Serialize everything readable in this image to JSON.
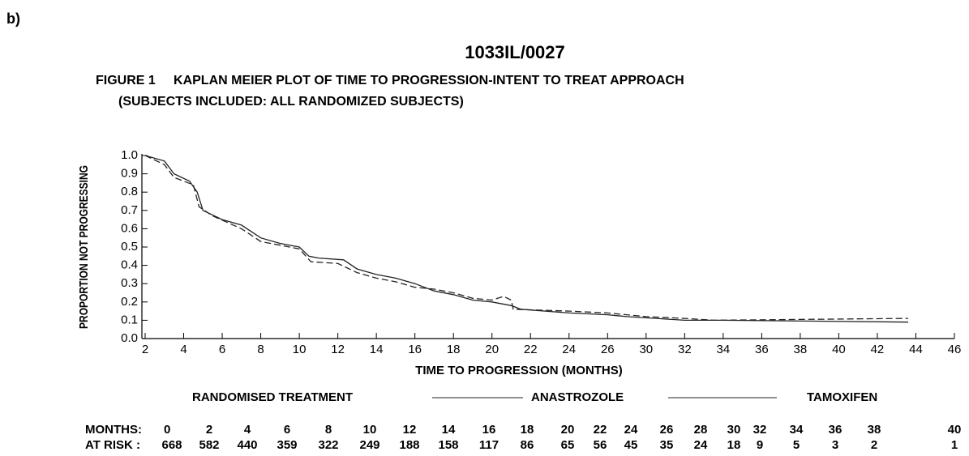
{
  "label": "b)",
  "header": {
    "code": "1033IL/0027",
    "figure": "FIGURE 1     KAPLAN MEIER PLOT OF TIME TO PROGRESSION-INTENT TO TREAT APPROACH",
    "subtitle": "(SUBJECTS INCLUDED: ALL RANDOMIZED SUBJECTS)"
  },
  "chart_data": {
    "type": "line",
    "x_label": "TIME TO PROGRESSION (MONTHS)",
    "y_label": "PROPORTION NOT PROGRESSING",
    "xlim": [
      2,
      44
    ],
    "xticks": [
      2,
      4,
      6,
      8,
      10,
      12,
      14,
      16,
      18,
      20,
      22,
      24,
      26,
      {
        "value": 28,
        "label": "30"
      },
      {
        "value": 30,
        "label": "32"
      },
      {
        "value": 32,
        "label": "34"
      },
      {
        "value": 34,
        "label": "36"
      },
      {
        "value": 36,
        "label": "38"
      },
      {
        "value": 38,
        "label": "40"
      },
      {
        "value": 40,
        "label": "42"
      },
      {
        "value": 42,
        "label": "44"
      },
      {
        "value": 44,
        "label": "46"
      }
    ],
    "ylim": [
      0,
      1
    ],
    "yticks": [
      {
        "value": 0,
        "label": "0.0"
      },
      0.1,
      0.2,
      0.3,
      0.4,
      0.5,
      0.6,
      0.7,
      0.8,
      0.9,
      {
        "value": 1,
        "label": "1.0"
      }
    ],
    "legend_title": "RANDOMISED TREATMENT",
    "series": [
      {
        "name": "ANASTROZOLE",
        "color": "#222222",
        "dash": "none",
        "x": [
          2,
          3,
          3.5,
          4.3,
          4.7,
          5,
          6,
          7,
          8,
          9,
          10,
          10.5,
          11,
          12.3,
          13,
          14,
          15,
          16,
          17,
          18,
          19,
          20,
          21,
          21.5,
          24,
          26,
          27,
          30,
          32,
          41.6
        ],
        "values": [
          1.0,
          0.97,
          0.9,
          0.86,
          0.8,
          0.7,
          0.65,
          0.62,
          0.55,
          0.52,
          0.5,
          0.45,
          0.44,
          0.43,
          0.38,
          0.35,
          0.33,
          0.3,
          0.26,
          0.24,
          0.21,
          0.2,
          0.18,
          0.16,
          0.14,
          0.13,
          0.12,
          0.1,
          0.1,
          0.09
        ]
      },
      {
        "name": "TAMOXIFEN",
        "color": "#222222",
        "dash": "8 4",
        "x": [
          2,
          3,
          3.5,
          4.5,
          4.8,
          5.5,
          7,
          8,
          9,
          10,
          10.6,
          12,
          13,
          14,
          15,
          16,
          17,
          18,
          19,
          20,
          20.6,
          21,
          21.1,
          24,
          26,
          28,
          30,
          31.5,
          41.6
        ],
        "values": [
          1.0,
          0.95,
          0.88,
          0.84,
          0.72,
          0.67,
          0.6,
          0.53,
          0.51,
          0.49,
          0.42,
          0.41,
          0.36,
          0.33,
          0.31,
          0.28,
          0.27,
          0.25,
          0.22,
          0.21,
          0.23,
          0.21,
          0.16,
          0.15,
          0.14,
          0.12,
          0.11,
          0.1,
          0.11
        ]
      }
    ],
    "at_risk": {
      "months_label": "MONTHS:",
      "at_risk_label": "AT RISK :",
      "months": [
        0,
        2,
        4,
        6,
        8,
        10,
        12,
        14,
        16,
        18,
        20,
        22,
        24,
        26,
        28,
        30,
        32,
        34,
        36,
        38,
        40
      ],
      "counts": [
        668,
        582,
        440,
        359,
        322,
        249,
        188,
        158,
        117,
        86,
        65,
        56,
        45,
        35,
        24,
        18,
        9,
        5,
        3,
        2,
        1
      ]
    }
  }
}
